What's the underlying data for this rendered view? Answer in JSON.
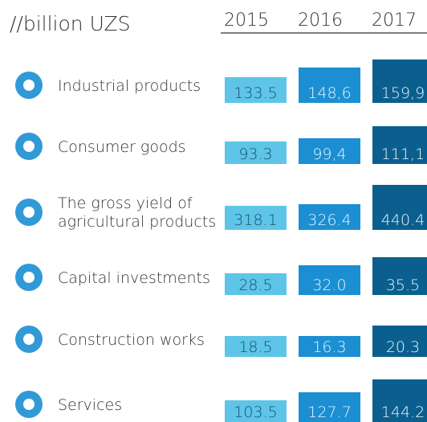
{
  "header": {
    "title": "//billion UZS",
    "years": [
      "2015",
      "2016",
      "2017"
    ]
  },
  "rows": [
    {
      "label": [
        "Industrial products"
      ],
      "values": [
        "133.5",
        "148,6",
        "159,9"
      ]
    },
    {
      "label": [
        "Consumer goods"
      ],
      "values": [
        "93.3",
        "99,4",
        "111,1"
      ]
    },
    {
      "label": [
        "The gross yield of",
        "agricultural products"
      ],
      "values": [
        "318.1",
        "326.4",
        "440.4"
      ]
    },
    {
      "label": [
        "Capital investments"
      ],
      "values": [
        "28.5",
        "32.0",
        "35.5"
      ]
    },
    {
      "label": [
        "Construction works"
      ],
      "values": [
        "18.5",
        "16.3",
        "20.3"
      ]
    },
    {
      "label": [
        "Services"
      ],
      "values": [
        "103.5",
        "127.7",
        "144.2"
      ]
    }
  ]
}
